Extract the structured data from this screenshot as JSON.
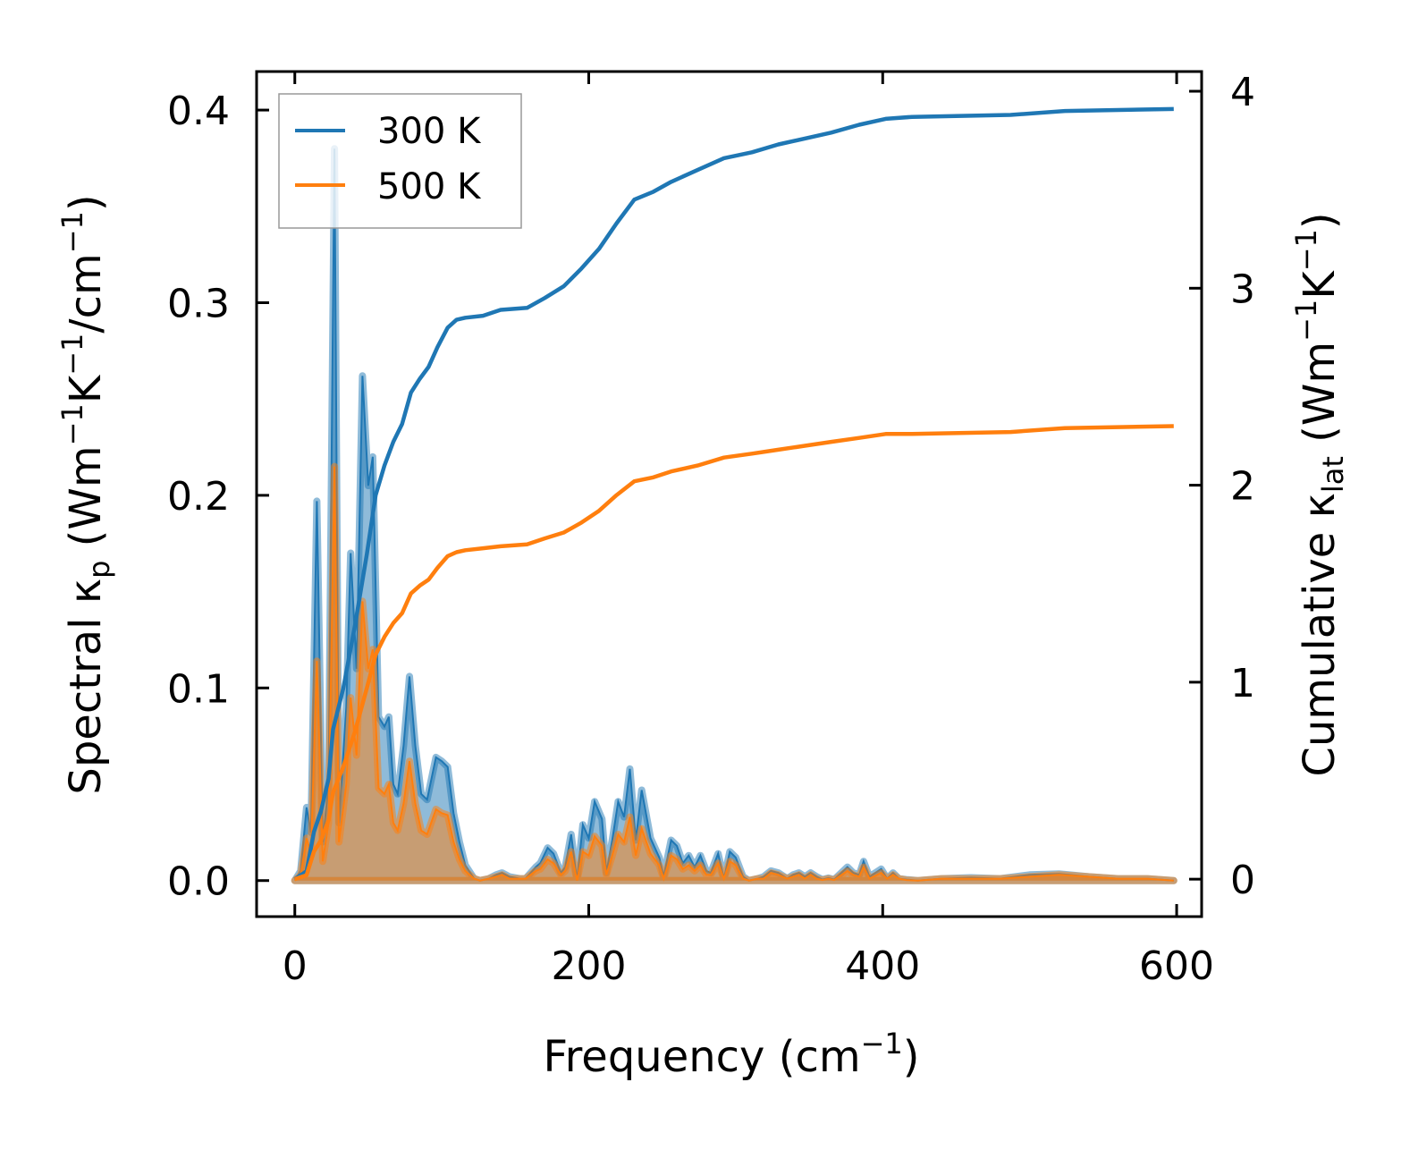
{
  "chart_data": {
    "type": "area",
    "title": "",
    "xlabel": {
      "text": "Frequency (cm",
      "sup": "−1",
      "tail": ")"
    },
    "ylabel_left": {
      "text": "Spectral κ",
      "sub": "p",
      "mid1": " (Wm",
      "sup1": "−1",
      "mid2": "K",
      "sup2": "−1",
      "mid3": "/cm",
      "sup3": "−1",
      "tail": ")"
    },
    "ylabel_right": {
      "text": "Cumulative κ",
      "sub": "lat",
      "mid1": " (Wm",
      "sup1": "−1",
      "mid2": "K",
      "sup2": "−1",
      "tail": ")"
    },
    "xlim": [
      -26,
      617
    ],
    "ylim_left": [
      -0.0187,
      0.42
    ],
    "ylim_right": [
      -0.19,
      4.1
    ],
    "xticks": [
      "0",
      "200",
      "400",
      "600"
    ],
    "xtick_values": [
      0,
      200,
      400,
      600
    ],
    "yticks_left": [
      "0.0",
      "0.1",
      "0.2",
      "0.3",
      "0.4"
    ],
    "ytick_left_values": [
      0,
      0.1,
      0.2,
      0.3,
      0.4
    ],
    "yticks_right": [
      "0",
      "1",
      "2",
      "3",
      "4"
    ],
    "ytick_right_values": [
      0,
      1,
      2,
      3,
      4
    ],
    "legend": {
      "position": "top-left",
      "entries": [
        "300 K",
        "500 K"
      ]
    },
    "colors": {
      "300 K": "#1f77b4",
      "500 K": "#ff7f0e"
    },
    "spectral": {
      "x": [
        0,
        4,
        8,
        11,
        15,
        19,
        23,
        27,
        30,
        35,
        38,
        42,
        46,
        50,
        53,
        57,
        61,
        64,
        67,
        70,
        74,
        78,
        82,
        86,
        90,
        96,
        100,
        104,
        108,
        112,
        116,
        122,
        126,
        132,
        137,
        141,
        146,
        153,
        157,
        164,
        167,
        172,
        176,
        181,
        184,
        188,
        192,
        196,
        200,
        204,
        209,
        212,
        216,
        220,
        224,
        228,
        232,
        236,
        242,
        248,
        251,
        256,
        260,
        264,
        268,
        272,
        276,
        280,
        283,
        288,
        292,
        296,
        300,
        305,
        309,
        315,
        319,
        324,
        329,
        335,
        339,
        343,
        347,
        351,
        355,
        359,
        363,
        367,
        376,
        380,
        384,
        387,
        391,
        399,
        403,
        407,
        411,
        416,
        424,
        440,
        460,
        480,
        500,
        520,
        540,
        560,
        580,
        598
      ],
      "series": [
        {
          "name": "300 K",
          "values": [
            0,
            0.005,
            0.038,
            0.025,
            0.197,
            0.02,
            0.05,
            0.38,
            0.03,
            0.09,
            0.17,
            0.11,
            0.262,
            0.205,
            0.22,
            0.085,
            0.08,
            0.085,
            0.05,
            0.045,
            0.07,
            0.106,
            0.07,
            0.045,
            0.042,
            0.064,
            0.062,
            0.059,
            0.035,
            0.02,
            0.008,
            0.001,
            0,
            0.001,
            0.003,
            0.004,
            0.002,
            0.001,
            0.001,
            0.007,
            0.009,
            0.017,
            0.014,
            0.004,
            0.007,
            0.024,
            0.0,
            0.029,
            0.022,
            0.041,
            0.032,
            0.004,
            0.021,
            0.041,
            0.033,
            0.058,
            0.021,
            0.047,
            0.022,
            0.012,
            0.002,
            0.021,
            0.018,
            0.009,
            0.013,
            0.007,
            0.013,
            0.005,
            0.004,
            0.014,
            0.001,
            0.015,
            0.012,
            0.002,
            0.0,
            0.001,
            0.002,
            0.005,
            0.004,
            0.001,
            0.003,
            0.004,
            0.002,
            0.004,
            0.002,
            0.0005,
            0.0013,
            0.0005,
            0.007,
            0.004,
            0.003,
            0.01,
            0.002,
            0.006,
            0.001,
            0.004,
            0.001,
            0.0005,
            0,
            0.001,
            0.0015,
            0.001,
            0.003,
            0.0035,
            0.002,
            0.001,
            0.001,
            0
          ]
        },
        {
          "name": "500 K",
          "values": [
            0,
            0.003,
            0.022,
            0.014,
            0.114,
            0.01,
            0.03,
            0.215,
            0.02,
            0.05,
            0.095,
            0.065,
            0.145,
            0.11,
            0.12,
            0.048,
            0.045,
            0.05,
            0.03,
            0.026,
            0.04,
            0.062,
            0.04,
            0.026,
            0.024,
            0.037,
            0.035,
            0.034,
            0.02,
            0.011,
            0.005,
            0.001,
            0,
            0.001,
            0.002,
            0.003,
            0.001,
            0.001,
            0.001,
            0.005,
            0.006,
            0.011,
            0.009,
            0.003,
            0.005,
            0.015,
            0.0,
            0.015,
            0.013,
            0.023,
            0.018,
            0.003,
            0.013,
            0.024,
            0.02,
            0.033,
            0.013,
            0.027,
            0.014,
            0.008,
            0.001,
            0.013,
            0.011,
            0.006,
            0.008,
            0.005,
            0.008,
            0.003,
            0.003,
            0.009,
            0.001,
            0.01,
            0.008,
            0.001,
            0.0,
            0.001,
            0.001,
            0.004,
            0.003,
            0.001,
            0.002,
            0.003,
            0.001,
            0.003,
            0.001,
            0.0003,
            0.001,
            0.0003,
            0.005,
            0.003,
            0.002,
            0.007,
            0.001,
            0.004,
            0.001,
            0.003,
            0.001,
            0.0003,
            0,
            0.001,
            0.001,
            0.001,
            0.002,
            0.003,
            0.002,
            0.001,
            0.001,
            0
          ]
        }
      ]
    },
    "cumulative": {
      "x": [
        0,
        8,
        13,
        18,
        23,
        26,
        33,
        41,
        49,
        55,
        61,
        67,
        73,
        79,
        85,
        91,
        97,
        104,
        110,
        116,
        128,
        140,
        158,
        170,
        183,
        195,
        207,
        219,
        231,
        244,
        256,
        274,
        292,
        311,
        329,
        347,
        365,
        384,
        402,
        420,
        487,
        524,
        598
      ],
      "series": [
        {
          "name": "300 K",
          "values": [
            0,
            0.04,
            0.24,
            0.35,
            0.51,
            0.76,
            0.97,
            1.29,
            1.65,
            1.95,
            2.1,
            2.22,
            2.31,
            2.47,
            2.54,
            2.6,
            2.7,
            2.8,
            2.84,
            2.85,
            2.86,
            2.89,
            2.9,
            2.95,
            3.01,
            3.1,
            3.2,
            3.33,
            3.45,
            3.49,
            3.54,
            3.6,
            3.66,
            3.69,
            3.73,
            3.76,
            3.79,
            3.83,
            3.86,
            3.87,
            3.88,
            3.9,
            3.91
          ]
        },
        {
          "name": "500 K",
          "values": [
            0,
            0.02,
            0.14,
            0.2,
            0.3,
            0.44,
            0.57,
            0.75,
            0.97,
            1.14,
            1.23,
            1.3,
            1.35,
            1.45,
            1.49,
            1.52,
            1.58,
            1.64,
            1.66,
            1.67,
            1.68,
            1.69,
            1.7,
            1.73,
            1.76,
            1.81,
            1.87,
            1.95,
            2.02,
            2.04,
            2.07,
            2.1,
            2.14,
            2.16,
            2.18,
            2.2,
            2.22,
            2.24,
            2.26,
            2.26,
            2.27,
            2.29,
            2.3
          ]
        }
      ]
    }
  }
}
